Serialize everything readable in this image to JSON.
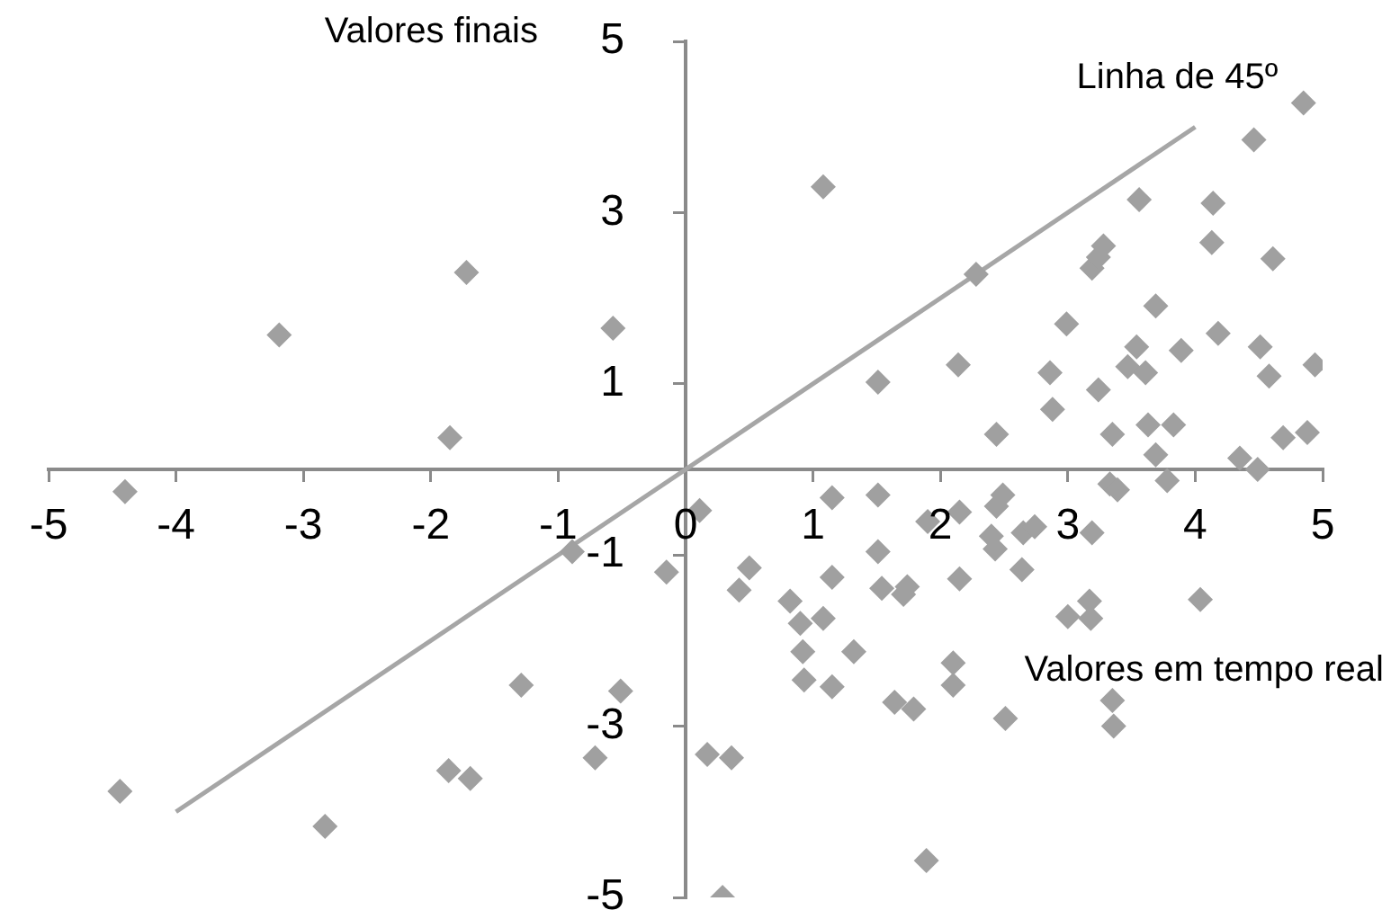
{
  "chart_data": {
    "type": "scatter",
    "xlabel": "Valores em tempo real",
    "ylabel": "Valores finais",
    "xlim": [
      -5,
      5
    ],
    "xticks": [
      -5,
      -4,
      -3,
      -2,
      -1,
      0,
      1,
      2,
      3,
      4,
      5
    ],
    "ylim": [
      -5,
      5
    ],
    "yticks": [
      -5,
      -3,
      -1,
      1,
      3,
      5
    ],
    "grid": false,
    "legend": false,
    "marker": "diamond",
    "series": [
      {
        "color": "#a0a0a0",
        "x": [
          -4.4,
          -3.19,
          -1.72,
          -1.85,
          -0.57,
          -0.89,
          -1.29,
          -0.51,
          -0.71,
          -1.86,
          -1.69,
          -4.44,
          -2.83,
          -0.15,
          0.11,
          1.08,
          2.28,
          1.51,
          2.14,
          2.44,
          2.99,
          2.86,
          2.88,
          3.24,
          3.19,
          3.24,
          3.28,
          3.56,
          3.69,
          3.54,
          3.47,
          3.61,
          3.89,
          3.35,
          3.63,
          3.83,
          3.69,
          4.14,
          4.13,
          4.46,
          4.85,
          4.18,
          4.61,
          4.51,
          4.58,
          4.94,
          4.69,
          4.88,
          4.35,
          4.49,
          3.78,
          3.33,
          3.39,
          1.15,
          1.51,
          1.9,
          2.15,
          2.49,
          2.44,
          2.4,
          2.43,
          2.65,
          2.74,
          2.64,
          3.19,
          2.15,
          1.51,
          1.54,
          1.74,
          1.71,
          1.15,
          0.5,
          0.42,
          0.82,
          0.9,
          1.08,
          0.92,
          0.93,
          1.32,
          1.15,
          1.64,
          1.79,
          2.1,
          2.1,
          2.51,
          3.35,
          3.36,
          3.0,
          3.17,
          3.18,
          4.04,
          0.17,
          0.36,
          1.89,
          0.29
        ],
        "values": [
          -0.26,
          1.57,
          2.3,
          0.37,
          1.65,
          -0.96,
          -2.52,
          -2.59,
          -3.37,
          -3.52,
          -3.61,
          -3.76,
          -4.17,
          -1.2,
          -0.48,
          3.3,
          2.28,
          1.02,
          1.22,
          0.41,
          1.7,
          1.13,
          0.7,
          0.93,
          2.35,
          2.48,
          2.61,
          3.15,
          1.91,
          1.43,
          1.2,
          1.13,
          1.39,
          0.41,
          0.52,
          0.52,
          0.17,
          3.11,
          2.65,
          3.85,
          4.28,
          1.59,
          2.46,
          1.43,
          1.09,
          1.22,
          0.37,
          0.43,
          0.13,
          0.0,
          -0.13,
          -0.17,
          -0.24,
          -0.33,
          -0.3,
          -0.61,
          -0.5,
          -0.3,
          -0.43,
          -0.78,
          -0.93,
          -0.74,
          -0.67,
          -1.17,
          -0.74,
          -1.28,
          -0.96,
          -1.39,
          -1.37,
          -1.46,
          -1.26,
          -1.15,
          -1.41,
          -1.54,
          -1.8,
          -1.74,
          -2.13,
          -2.46,
          -2.13,
          -2.54,
          -2.72,
          -2.8,
          -2.26,
          -2.52,
          -2.91,
          -2.7,
          -3.0,
          -1.72,
          -1.54,
          -1.74,
          -1.52,
          -3.33,
          -3.37,
          -4.57,
          -5.0
        ]
      },
      {
        "type": "line",
        "marker": "none",
        "name": "Linha de 45º",
        "color": "#a6a6a6",
        "x": [
          -4,
          4
        ],
        "values": [
          -4,
          4
        ]
      }
    ]
  }
}
